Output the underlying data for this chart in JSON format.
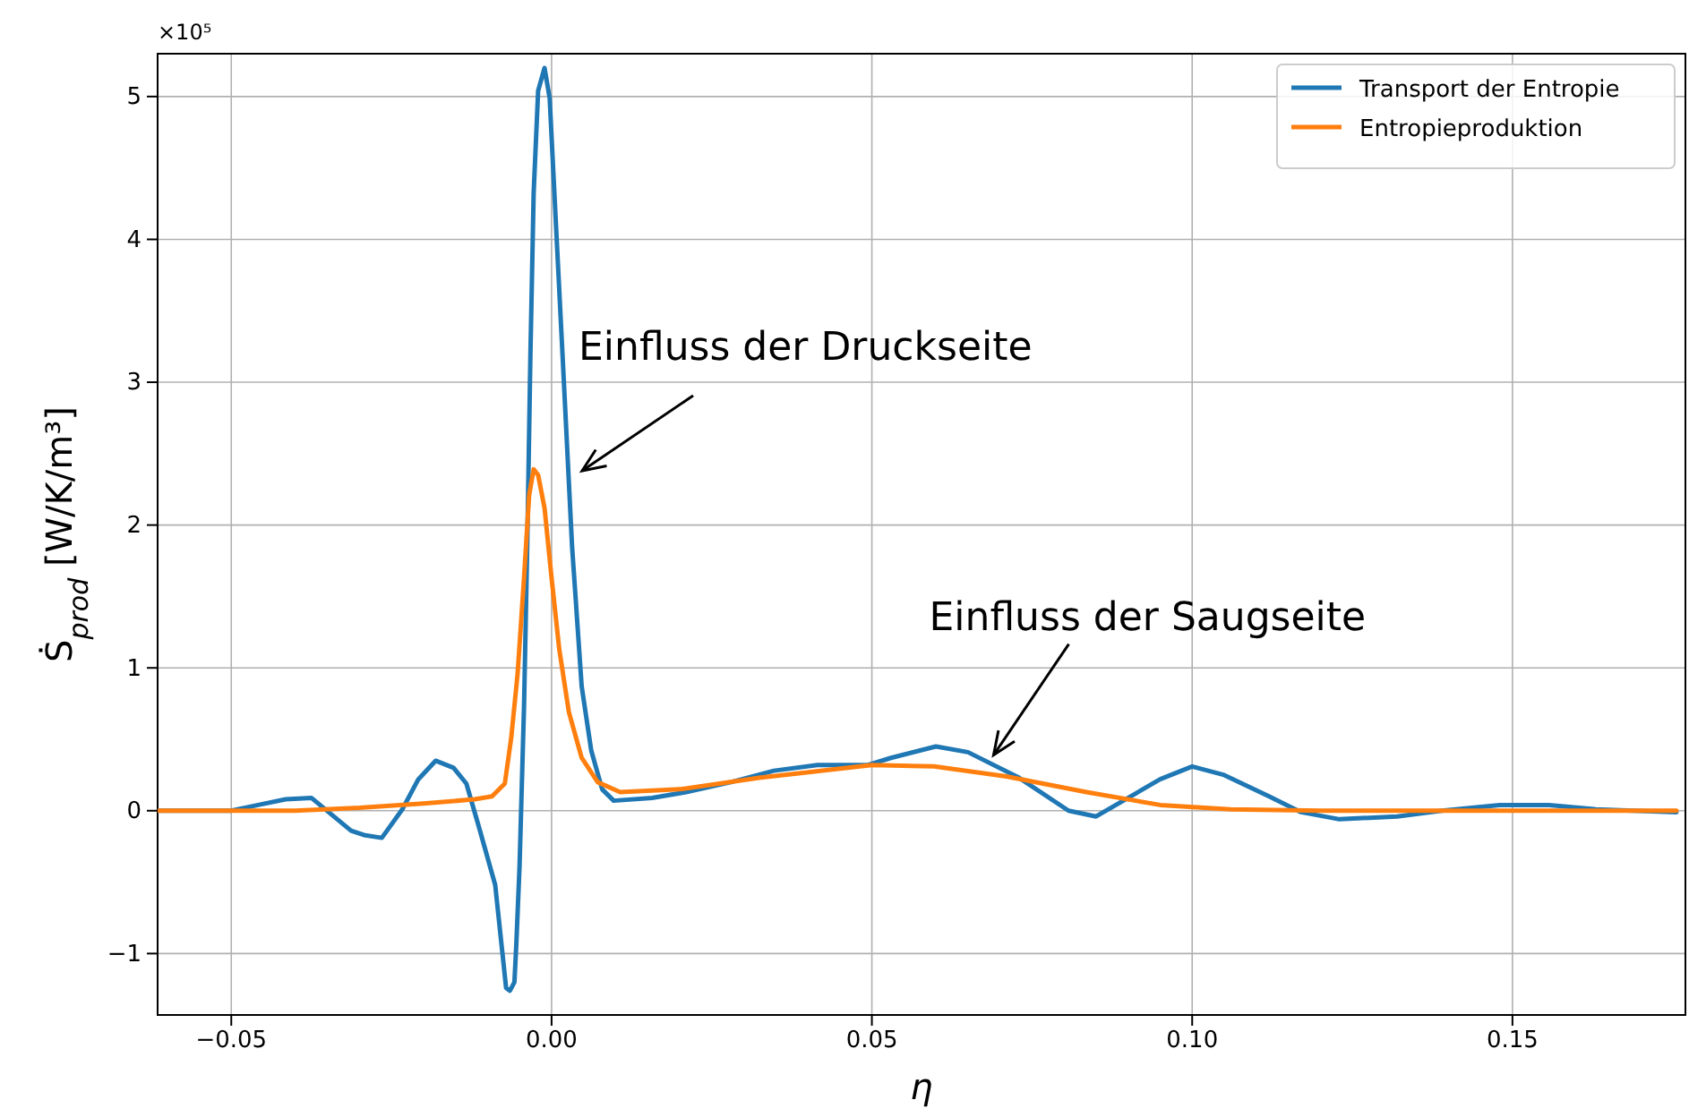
{
  "chart_data": {
    "type": "line",
    "xlabel": "η",
    "ylabel": "Ṡ$_{prod}$  [W/K/m³]",
    "xlim": [
      -0.0615,
      0.177
    ],
    "ylim": [
      -1.43,
      5.3
    ],
    "xticks": [
      {
        "value": -0.05,
        "label": "−0.05"
      },
      {
        "value": 0,
        "label": "0.00"
      },
      {
        "value": 0.05,
        "label": "0.05"
      },
      {
        "value": 0.1,
        "label": "0.10"
      },
      {
        "value": 0.15,
        "label": "0.15"
      }
    ],
    "yticks": [
      {
        "value": -1,
        "label": "−1"
      },
      0,
      1,
      2,
      3,
      4,
      5
    ],
    "grid": true,
    "legend": "top right",
    "line_style": "solid",
    "marker": "none",
    "annotations": [
      "×10⁵",
      "Einfluss der Druckseite",
      {
        "text": "Einfluss der Saugseite",
        "x": 0.069,
        "y": 0.39
      }
    ],
    "series": [
      {
        "name": "Transport der Entropie",
        "color": "#1f77b4",
        "x": [
          -0.0613,
          -0.05,
          -0.0458,
          -0.0415,
          -0.0375,
          -0.0313,
          -0.0293,
          -0.0265,
          -0.0233,
          -0.0208,
          -0.0181,
          -0.0153,
          -0.0133,
          -0.0113,
          -0.0088,
          -0.0071,
          -0.0065,
          -0.0058,
          -0.0055,
          -0.005,
          -0.0043,
          -0.0038,
          -0.0033,
          -0.0028,
          -0.0021,
          -0.0011,
          -0.0003,
          0.0007,
          0.0017,
          0.0032,
          0.0047,
          0.0062,
          0.0079,
          0.0097,
          0.0157,
          0.021,
          0.028,
          0.0347,
          0.0415,
          0.0494,
          0.053,
          0.06,
          0.065,
          0.073,
          0.0807,
          0.085,
          0.095,
          0.1,
          0.105,
          0.112,
          0.117,
          0.123,
          0.132,
          0.139,
          0.148,
          0.1557,
          0.163,
          0.1756
        ],
        "values": [
          0,
          0,
          0.04,
          0.08,
          0.09,
          -0.14,
          -0.17,
          -0.19,
          0.01,
          0.22,
          0.35,
          0.3,
          0.19,
          -0.12,
          -0.52,
          -1.24,
          -1.26,
          -1.2,
          -0.93,
          -0.39,
          0.73,
          1.85,
          3.2,
          4.32,
          5.04,
          5.2,
          4.99,
          4.09,
          3.2,
          1.85,
          0.87,
          0.42,
          0.15,
          0.07,
          0.09,
          0.13,
          0.2,
          0.28,
          0.32,
          0.32,
          0.37,
          0.45,
          0.41,
          0.23,
          0,
          -0.04,
          0.22,
          0.31,
          0.25,
          0.1,
          -0.01,
          -0.06,
          -0.04,
          0,
          0.04,
          0.04,
          0.01,
          -0.01
        ]
      },
      {
        "name": "Entropieproduktion",
        "color": "#ff7f0e",
        "x": [
          -0.0613,
          -0.04,
          -0.03,
          -0.02,
          -0.012,
          -0.0093,
          -0.0073,
          -0.0063,
          -0.0053,
          -0.0043,
          -0.0035,
          -0.0028,
          -0.0021,
          -0.0011,
          0,
          0.0012,
          0.0027,
          0.0047,
          0.0072,
          0.0107,
          0.02,
          0.0324,
          0.05,
          0.0597,
          0.071,
          0.0835,
          0.095,
          0.106,
          0.12,
          0.1756
        ],
        "values": [
          0,
          0,
          0.02,
          0.05,
          0.08,
          0.1,
          0.19,
          0.51,
          0.96,
          1.63,
          2.21,
          2.39,
          2.35,
          2.12,
          1.63,
          1.13,
          0.69,
          0.37,
          0.2,
          0.13,
          0.15,
          0.23,
          0.32,
          0.31,
          0.24,
          0.13,
          0.04,
          0.01,
          0,
          0
        ]
      }
    ]
  }
}
